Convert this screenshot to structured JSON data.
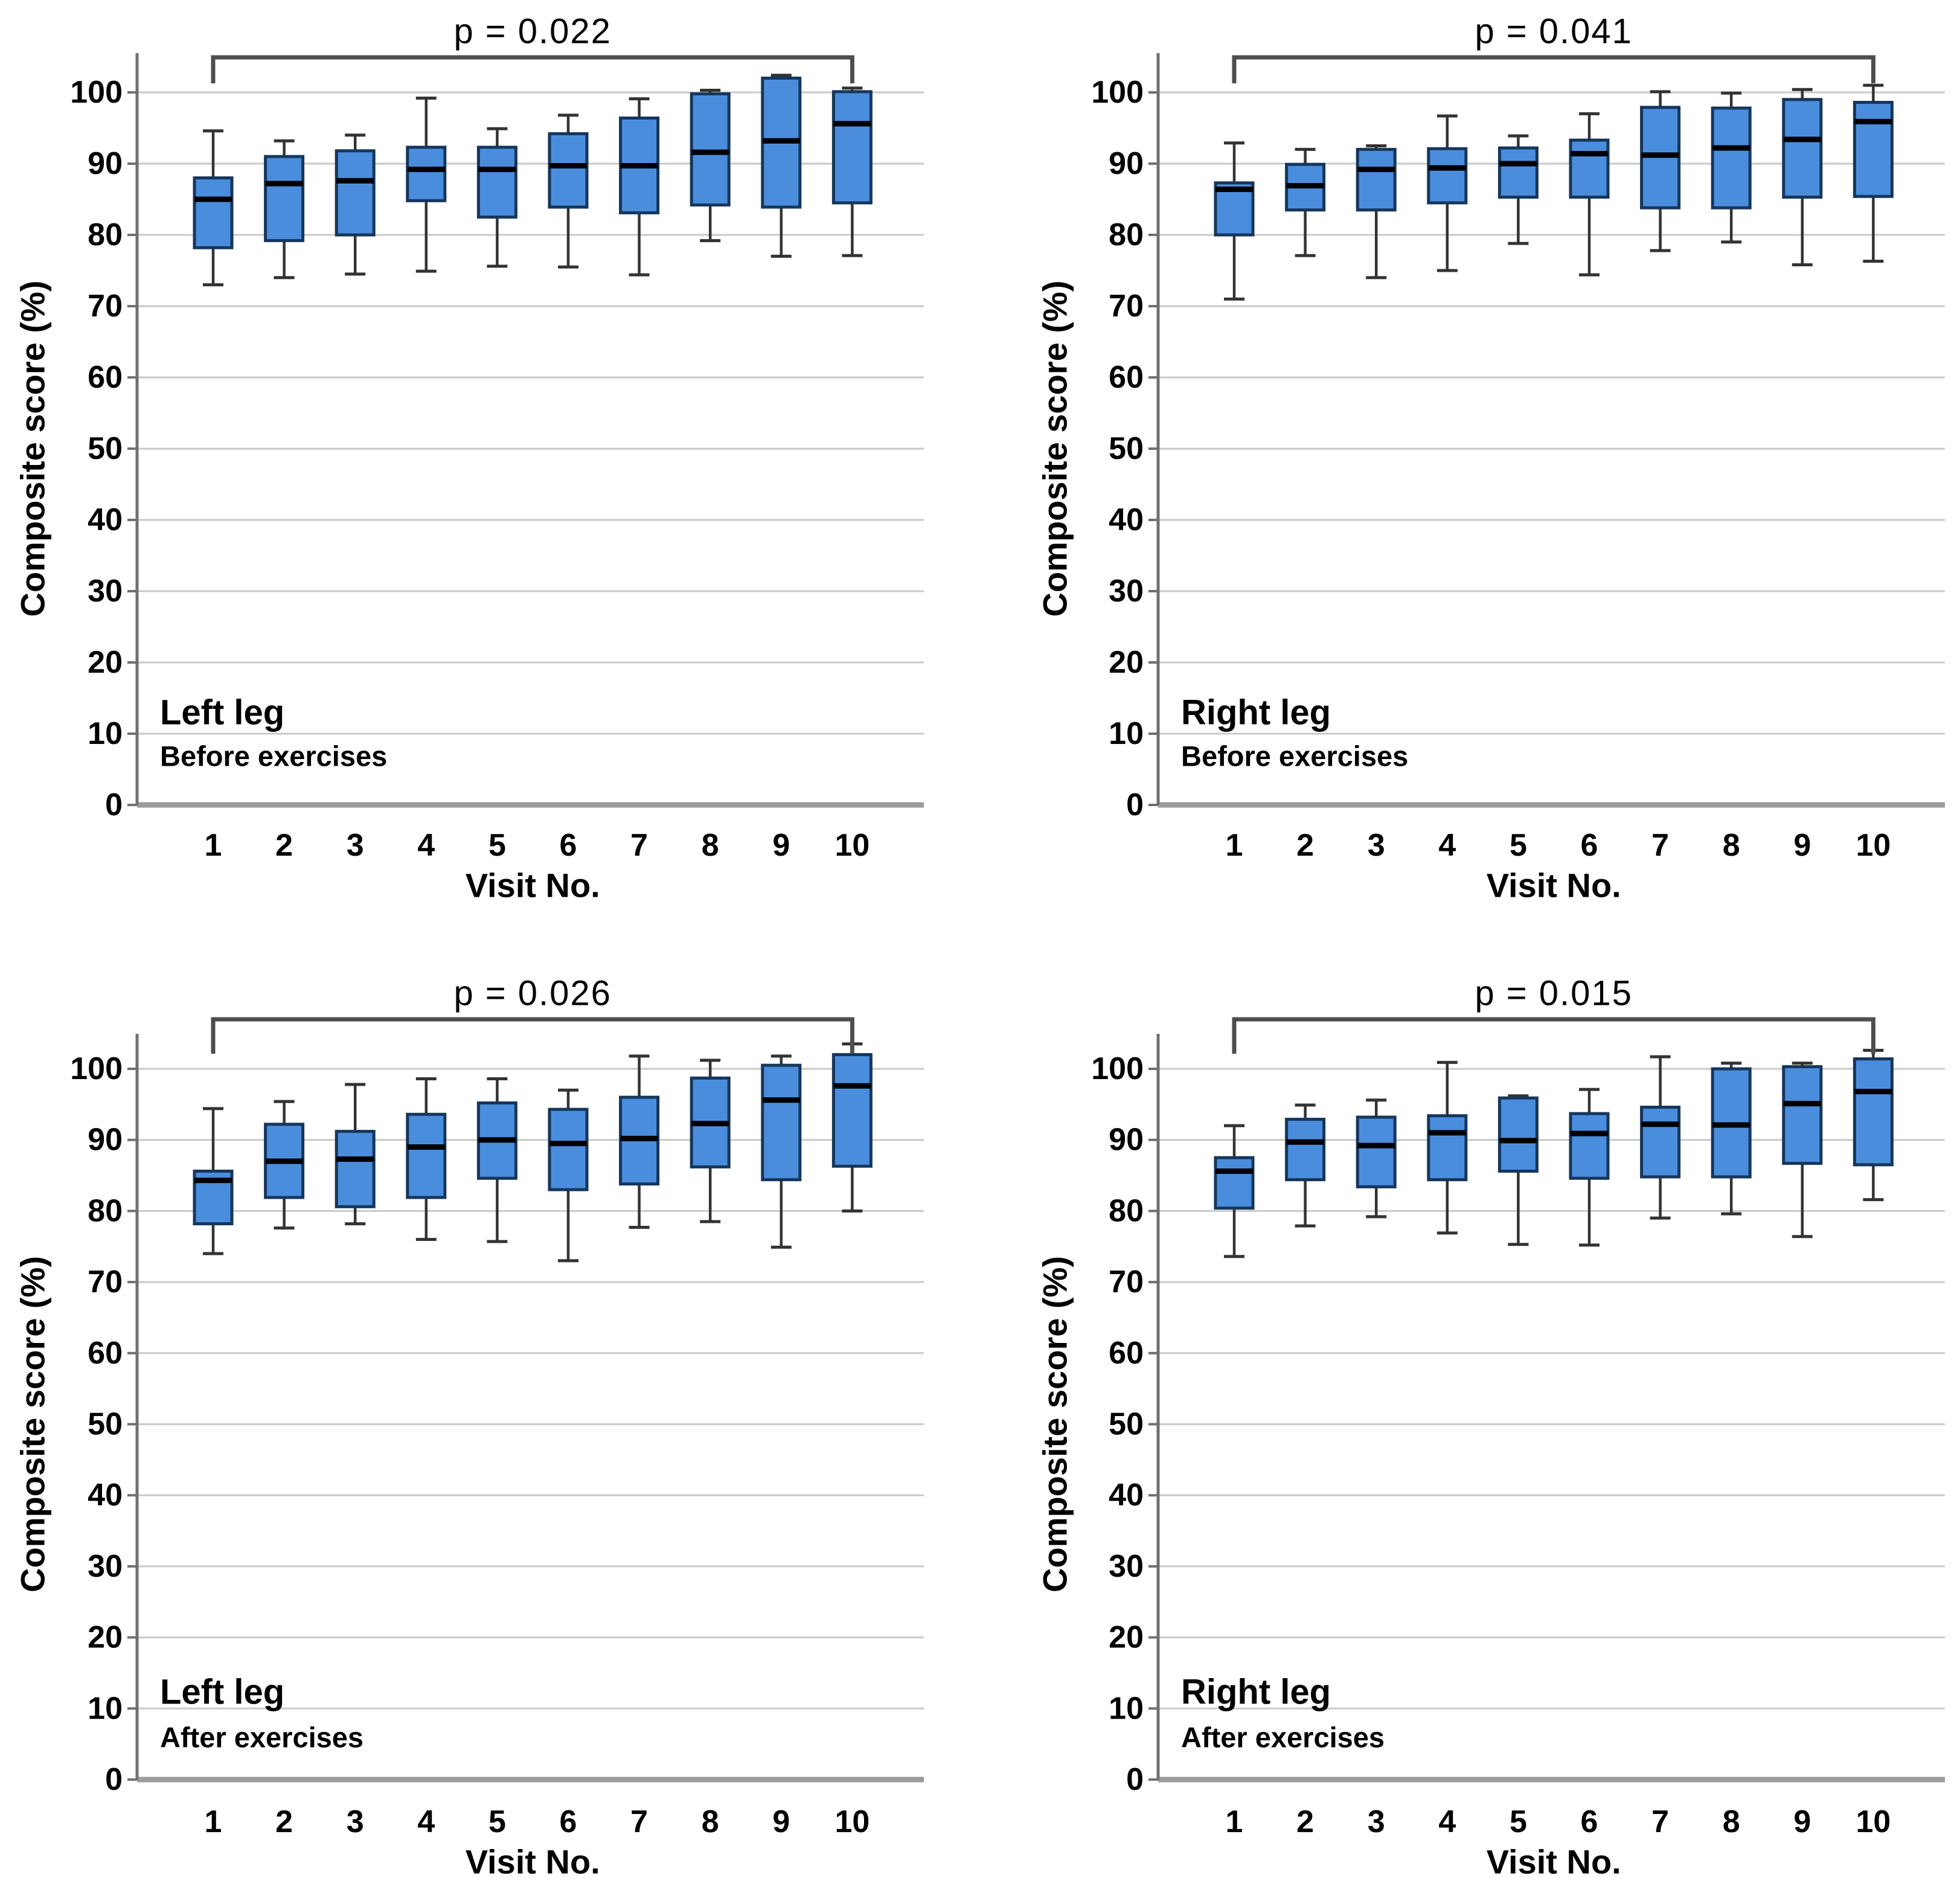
{
  "figure": {
    "description": "Box plots of composite score (%) across 10 visits for left and right legs, before and after exercises",
    "xlabel": "Visit No.",
    "ylabel": "Composite score (%)"
  },
  "colors": {
    "box_fill": "#4a8ddc",
    "box_border": "#16365c",
    "median": "#000000",
    "whisker": "#333333",
    "gridline": "#c9c9c9",
    "baseline": "#9b9b9b",
    "axis_line": "#707070",
    "bracket": "#4e4e4e",
    "text": "#000000"
  },
  "chart_data": [
    {
      "type": "box",
      "panel": "top-left",
      "group_label": "Left leg",
      "condition_label": "Before exercises",
      "significance_label": "p = 0.022",
      "xlabel": "Visit No.",
      "ylabel": "Composite score (%)",
      "x_ticks": [
        "1",
        "2",
        "3",
        "4",
        "5",
        "6",
        "7",
        "8",
        "9",
        "10"
      ],
      "y_ticks": [
        0,
        10,
        20,
        30,
        40,
        50,
        60,
        70,
        80,
        90,
        100
      ],
      "ylim": [
        0,
        105.7
      ],
      "grid": true,
      "boxes": [
        {
          "visit": "1",
          "low": 73.0,
          "q1": 78.2,
          "median": 85.0,
          "q3": 88.0,
          "high": 94.6
        },
        {
          "visit": "2",
          "low": 74.0,
          "q1": 79.2,
          "median": 87.2,
          "q3": 91.0,
          "high": 93.2
        },
        {
          "visit": "3",
          "low": 74.5,
          "q1": 80.0,
          "median": 87.6,
          "q3": 91.8,
          "high": 94.0
        },
        {
          "visit": "4",
          "low": 74.9,
          "q1": 84.8,
          "median": 89.2,
          "q3": 92.3,
          "high": 99.2
        },
        {
          "visit": "5",
          "low": 75.6,
          "q1": 82.5,
          "median": 89.2,
          "q3": 92.3,
          "high": 94.9
        },
        {
          "visit": "6",
          "low": 75.5,
          "q1": 83.9,
          "median": 89.7,
          "q3": 94.2,
          "high": 96.8
        },
        {
          "visit": "7",
          "low": 74.4,
          "q1": 83.1,
          "median": 89.7,
          "q3": 96.4,
          "high": 99.1
        },
        {
          "visit": "8",
          "low": 79.2,
          "q1": 84.2,
          "median": 91.6,
          "q3": 99.8,
          "high": 100.3
        },
        {
          "visit": "9",
          "low": 77.0,
          "q1": 83.9,
          "median": 93.2,
          "q3": 102.0,
          "high": 102.4
        },
        {
          "visit": "10",
          "low": 77.1,
          "q1": 84.5,
          "median": 95.6,
          "q3": 100.1,
          "high": 100.6
        }
      ]
    },
    {
      "type": "box",
      "panel": "top-right",
      "group_label": "Right leg",
      "condition_label": "Before exercises",
      "significance_label": "p = 0.041",
      "xlabel": "Visit No.",
      "ylabel": "Composite score (%)",
      "x_ticks": [
        "1",
        "2",
        "3",
        "4",
        "5",
        "6",
        "7",
        "8",
        "9",
        "10"
      ],
      "y_ticks": [
        0,
        10,
        20,
        30,
        40,
        50,
        60,
        70,
        80,
        90,
        100
      ],
      "ylim": [
        0,
        105.7
      ],
      "grid": true,
      "boxes": [
        {
          "visit": "1",
          "low": 71.0,
          "q1": 80.0,
          "median": 86.4,
          "q3": 87.3,
          "high": 92.9
        },
        {
          "visit": "2",
          "low": 77.1,
          "q1": 83.5,
          "median": 86.9,
          "q3": 89.9,
          "high": 92.0
        },
        {
          "visit": "3",
          "low": 74.0,
          "q1": 83.5,
          "median": 89.2,
          "q3": 92.0,
          "high": 92.5
        },
        {
          "visit": "4",
          "low": 75.0,
          "q1": 84.5,
          "median": 89.4,
          "q3": 92.1,
          "high": 96.7
        },
        {
          "visit": "5",
          "low": 78.8,
          "q1": 85.3,
          "median": 90.0,
          "q3": 92.2,
          "high": 93.9
        },
        {
          "visit": "6",
          "low": 74.4,
          "q1": 85.3,
          "median": 91.4,
          "q3": 93.3,
          "high": 97.0
        },
        {
          "visit": "7",
          "low": 77.8,
          "q1": 83.8,
          "median": 91.2,
          "q3": 97.9,
          "high": 100.1
        },
        {
          "visit": "8",
          "low": 79.0,
          "q1": 83.8,
          "median": 92.2,
          "q3": 97.8,
          "high": 99.9
        },
        {
          "visit": "9",
          "low": 75.8,
          "q1": 85.3,
          "median": 93.4,
          "q3": 99.0,
          "high": 100.4
        },
        {
          "visit": "10",
          "low": 76.3,
          "q1": 85.4,
          "median": 95.9,
          "q3": 98.6,
          "high": 101.0
        }
      ]
    },
    {
      "type": "box",
      "panel": "bottom-left",
      "group_label": "Left leg",
      "condition_label": "After exercises",
      "significance_label": "p = 0.026",
      "xlabel": "Visit No.",
      "ylabel": "Composite score (%)",
      "x_ticks": [
        "1",
        "2",
        "3",
        "4",
        "5",
        "6",
        "7",
        "8",
        "9",
        "10"
      ],
      "y_ticks": [
        0,
        10,
        20,
        30,
        40,
        50,
        60,
        70,
        80,
        90,
        100
      ],
      "ylim": [
        0,
        104.9
      ],
      "grid": true,
      "boxes": [
        {
          "visit": "1",
          "low": 74.0,
          "q1": 78.2,
          "median": 84.3,
          "q3": 85.6,
          "high": 94.4
        },
        {
          "visit": "2",
          "low": 77.6,
          "q1": 81.9,
          "median": 87.0,
          "q3": 92.2,
          "high": 95.4
        },
        {
          "visit": "3",
          "low": 78.2,
          "q1": 80.6,
          "median": 87.3,
          "q3": 91.2,
          "high": 97.8
        },
        {
          "visit": "4",
          "low": 76.0,
          "q1": 81.9,
          "median": 89.0,
          "q3": 93.6,
          "high": 98.6
        },
        {
          "visit": "5",
          "low": 75.7,
          "q1": 84.6,
          "median": 90.0,
          "q3": 95.2,
          "high": 98.6
        },
        {
          "visit": "6",
          "low": 73.0,
          "q1": 83.0,
          "median": 89.5,
          "q3": 94.3,
          "high": 97.0
        },
        {
          "visit": "7",
          "low": 77.7,
          "q1": 83.8,
          "median": 90.2,
          "q3": 96.0,
          "high": 101.8
        },
        {
          "visit": "8",
          "low": 78.5,
          "q1": 86.2,
          "median": 92.3,
          "q3": 98.7,
          "high": 101.2
        },
        {
          "visit": "9",
          "low": 74.9,
          "q1": 84.4,
          "median": 95.6,
          "q3": 100.5,
          "high": 101.8
        },
        {
          "visit": "10",
          "low": 80.0,
          "q1": 86.3,
          "median": 97.6,
          "q3": 102.0,
          "high": 103.5
        }
      ]
    },
    {
      "type": "box",
      "panel": "bottom-right",
      "group_label": "Right leg",
      "condition_label": "After exercises",
      "significance_label": "p = 0.015",
      "xlabel": "Visit No.",
      "ylabel": "Composite score (%)",
      "x_ticks": [
        "1",
        "2",
        "3",
        "4",
        "5",
        "6",
        "7",
        "8",
        "9",
        "10"
      ],
      "y_ticks": [
        0,
        10,
        20,
        30,
        40,
        50,
        60,
        70,
        80,
        90,
        100
      ],
      "ylim": [
        0,
        104.9
      ],
      "grid": true,
      "boxes": [
        {
          "visit": "1",
          "low": 73.6,
          "q1": 80.4,
          "median": 85.6,
          "q3": 87.5,
          "high": 92.0
        },
        {
          "visit": "2",
          "low": 77.9,
          "q1": 84.4,
          "median": 89.7,
          "q3": 92.9,
          "high": 94.9
        },
        {
          "visit": "3",
          "low": 79.2,
          "q1": 83.4,
          "median": 89.2,
          "q3": 93.2,
          "high": 95.6
        },
        {
          "visit": "4",
          "low": 76.9,
          "q1": 84.4,
          "median": 91.0,
          "q3": 93.4,
          "high": 100.9
        },
        {
          "visit": "5",
          "low": 75.3,
          "q1": 85.6,
          "median": 89.9,
          "q3": 95.9,
          "high": 96.2
        },
        {
          "visit": "6",
          "low": 75.2,
          "q1": 84.6,
          "median": 90.9,
          "q3": 93.7,
          "high": 97.1
        },
        {
          "visit": "7",
          "low": 79.0,
          "q1": 84.8,
          "median": 92.2,
          "q3": 94.6,
          "high": 101.7
        },
        {
          "visit": "8",
          "low": 79.6,
          "q1": 84.8,
          "median": 92.1,
          "q3": 100.0,
          "high": 100.8
        },
        {
          "visit": "9",
          "low": 76.4,
          "q1": 86.7,
          "median": 95.1,
          "q3": 100.3,
          "high": 100.8
        },
        {
          "visit": "10",
          "low": 81.6,
          "q1": 86.5,
          "median": 96.8,
          "q3": 101.4,
          "high": 102.6
        }
      ]
    }
  ]
}
